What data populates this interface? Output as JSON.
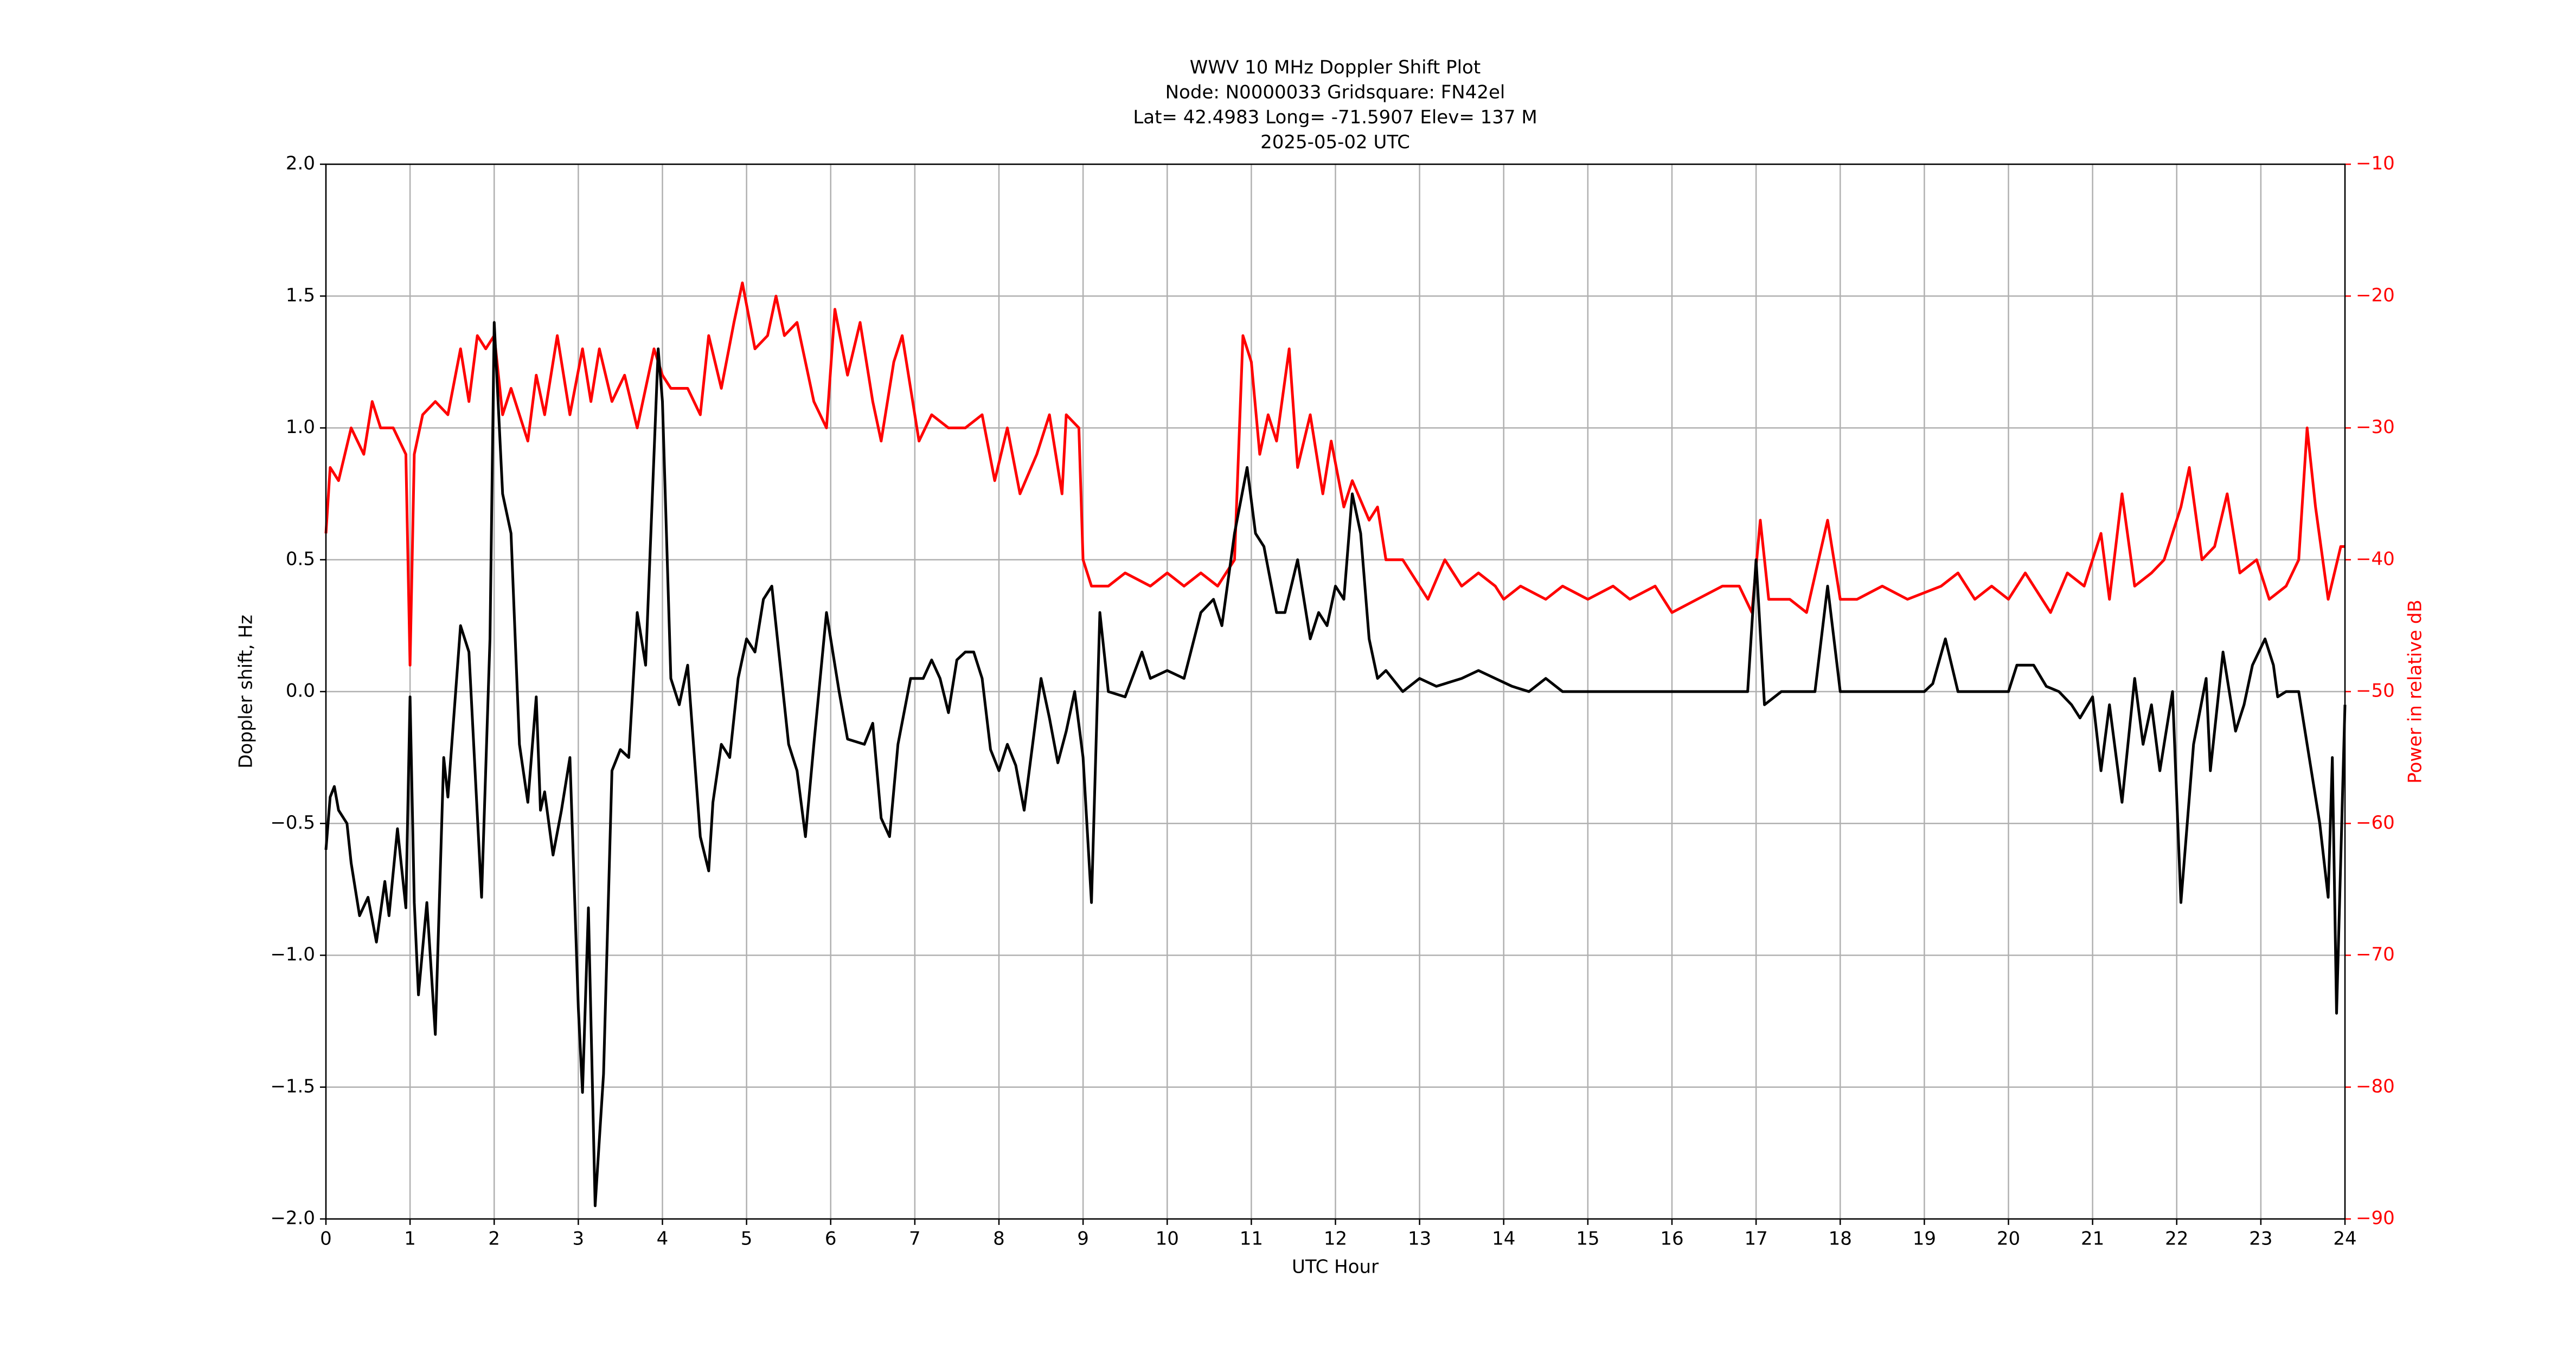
{
  "chart_data": {
    "type": "line",
    "title": [
      "WWV 10 MHz Doppler Shift Plot",
      "Node:  N0000033     Gridsquare:  FN42el",
      "Lat= 42.4983    Long= -71.5907    Elev= 137 M",
      "2025-05-02  UTC"
    ],
    "xlabel": "UTC Hour",
    "ylabel": "Doppler shift, Hz",
    "y2label": "Power in relative dB",
    "xlim": [
      0,
      24
    ],
    "xticks": [
      0,
      1,
      2,
      3,
      4,
      5,
      6,
      7,
      8,
      9,
      10,
      11,
      12,
      13,
      14,
      15,
      16,
      17,
      18,
      19,
      20,
      21,
      22,
      23,
      24
    ],
    "ylim": [
      -2.0,
      2.0
    ],
    "yticks": [
      {
        "value": -2.0,
        "label": "−2.0"
      },
      {
        "value": -1.5,
        "label": "−1.5"
      },
      {
        "value": -1.0,
        "label": "−1.0"
      },
      {
        "value": -0.5,
        "label": "−0.5"
      },
      {
        "value": 0.0,
        "label": "0.0"
      },
      {
        "value": 0.5,
        "label": "0.5"
      },
      {
        "value": 1.0,
        "label": "1.0"
      },
      {
        "value": 1.5,
        "label": "1.5"
      },
      {
        "value": 2.0,
        "label": "2.0"
      }
    ],
    "y2lim": [
      -90,
      -10
    ],
    "y2ticks": [
      {
        "value": -90,
        "label": "−90"
      },
      {
        "value": -80,
        "label": "−80"
      },
      {
        "value": -70,
        "label": "−70"
      },
      {
        "value": -60,
        "label": "−60"
      },
      {
        "value": -50,
        "label": "−50"
      },
      {
        "value": -40,
        "label": "−40"
      },
      {
        "value": -30,
        "label": "−30"
      },
      {
        "value": -20,
        "label": "−20"
      },
      {
        "value": -10,
        "label": "−10"
      }
    ],
    "grid": true,
    "y2color": "#ff0000",
    "series": [
      {
        "color": "#000000",
        "axis": "y",
        "x": [
          0,
          0.05,
          0.1,
          0.15,
          0.25,
          0.3,
          0.4,
          0.5,
          0.6,
          0.7,
          0.75,
          0.85,
          0.95,
          1.0,
          1.05,
          1.1,
          1.2,
          1.3,
          1.4,
          1.45,
          1.6,
          1.7,
          1.85,
          1.95,
          2.0,
          2.1,
          2.2,
          2.3,
          2.4,
          2.5,
          2.55,
          2.6,
          2.7,
          2.8,
          2.9,
          3.0,
          3.05,
          3.12,
          3.2,
          3.3,
          3.4,
          3.5,
          3.6,
          3.7,
          3.8,
          3.95,
          4.0,
          4.1,
          4.2,
          4.3,
          4.45,
          4.55,
          4.6,
          4.7,
          4.8,
          4.9,
          5.0,
          5.1,
          5.2,
          5.3,
          5.4,
          5.5,
          5.6,
          5.7,
          5.8,
          5.95,
          6.1,
          6.2,
          6.4,
          6.5,
          6.6,
          6.7,
          6.8,
          6.95,
          7.1,
          7.2,
          7.3,
          7.4,
          7.5,
          7.6,
          7.7,
          7.8,
          7.9,
          8.0,
          8.1,
          8.2,
          8.3,
          8.4,
          8.5,
          8.6,
          8.7,
          8.8,
          8.9,
          9.0,
          9.1,
          9.2,
          9.3,
          9.5,
          9.7,
          9.8,
          10.0,
          10.2,
          10.4,
          10.55,
          10.65,
          10.8,
          10.95,
          11.05,
          11.15,
          11.3,
          11.4,
          11.55,
          11.7,
          11.8,
          11.9,
          12.0,
          12.1,
          12.2,
          12.3,
          12.4,
          12.5,
          12.6,
          12.8,
          13.0,
          13.2,
          13.5,
          13.7,
          13.9,
          14.1,
          14.3,
          14.5,
          14.7,
          15,
          16,
          16.9,
          17.0,
          17.1,
          17.3,
          17.7,
          17.85,
          18.0,
          19.0,
          19.1,
          19.25,
          19.4,
          19.6,
          20.0,
          20.1,
          20.3,
          20.45,
          20.6,
          20.75,
          20.85,
          21.0,
          21.1,
          21.2,
          21.35,
          21.5,
          21.6,
          21.7,
          21.8,
          21.95,
          22.05,
          22.2,
          22.35,
          22.4,
          22.55,
          22.7,
          22.8,
          22.9,
          23.05,
          23.15,
          23.2,
          23.3,
          23.45,
          23.55,
          23.7,
          23.8,
          23.85,
          23.9,
          24.0
        ],
        "values": [
          -0.6,
          -0.4,
          -0.36,
          -0.45,
          -0.5,
          -0.65,
          -0.85,
          -0.78,
          -0.95,
          -0.72,
          -0.85,
          -0.52,
          -0.82,
          -0.02,
          -0.8,
          -1.15,
          -0.8,
          -1.3,
          -0.25,
          -0.4,
          0.25,
          0.15,
          -0.78,
          0.2,
          1.4,
          0.75,
          0.6,
          -0.2,
          -0.42,
          -0.02,
          -0.45,
          -0.38,
          -0.62,
          -0.45,
          -0.25,
          -1.2,
          -1.52,
          -0.82,
          -1.95,
          -1.45,
          -0.3,
          -0.22,
          -0.25,
          0.3,
          0.1,
          1.3,
          1.1,
          0.05,
          -0.05,
          0.1,
          -0.55,
          -0.68,
          -0.42,
          -0.2,
          -0.25,
          0.05,
          0.2,
          0.15,
          0.35,
          0.4,
          0.1,
          -0.2,
          -0.3,
          -0.55,
          -0.2,
          0.3,
          0.0,
          -0.18,
          -0.2,
          -0.12,
          -0.48,
          -0.55,
          -0.2,
          0.05,
          0.05,
          0.12,
          0.05,
          -0.08,
          0.12,
          0.15,
          0.15,
          0.05,
          -0.22,
          -0.3,
          -0.2,
          -0.28,
          -0.45,
          -0.2,
          0.05,
          -0.1,
          -0.27,
          -0.15,
          0.0,
          -0.25,
          -0.8,
          0.3,
          0.0,
          -0.02,
          0.15,
          0.05,
          0.08,
          0.05,
          0.3,
          0.35,
          0.25,
          0.6,
          0.85,
          0.6,
          0.55,
          0.3,
          0.3,
          0.5,
          0.2,
          0.3,
          0.25,
          0.4,
          0.35,
          0.75,
          0.6,
          0.2,
          0.05,
          0.08,
          0.0,
          0.05,
          0.02,
          0.05,
          0.08,
          0.05,
          0.02,
          0.0,
          0.05,
          0.0,
          0,
          0,
          0,
          0.5,
          -0.05,
          0.0,
          0.0,
          0.4,
          0.0,
          0.0,
          0.03,
          0.2,
          0.0,
          0.0,
          0.0,
          0.1,
          0.1,
          0.02,
          0.0,
          -0.05,
          -0.1,
          -0.02,
          -0.3,
          -0.05,
          -0.42,
          0.05,
          -0.2,
          -0.05,
          -0.3,
          0.0,
          -0.8,
          -0.2,
          0.05,
          -0.3,
          0.15,
          -0.15,
          -0.05,
          0.1,
          0.2,
          0.1,
          -0.02,
          0.0,
          0.0,
          -0.2,
          -0.5,
          -0.78,
          -0.25,
          -1.22,
          -0.05
        ]
      },
      {
        "color": "#ff0000",
        "axis": "y2",
        "x": [
          0,
          0.05,
          0.15,
          0.3,
          0.45,
          0.55,
          0.65,
          0.8,
          0.95,
          1.0,
          1.05,
          1.15,
          1.3,
          1.45,
          1.6,
          1.7,
          1.8,
          1.9,
          2.0,
          2.1,
          2.2,
          2.4,
          2.5,
          2.6,
          2.75,
          2.9,
          3.05,
          3.15,
          3.25,
          3.4,
          3.55,
          3.7,
          3.9,
          4.0,
          4.1,
          4.3,
          4.45,
          4.55,
          4.7,
          4.85,
          4.95,
          5.1,
          5.25,
          5.35,
          5.45,
          5.6,
          5.8,
          5.95,
          6.05,
          6.2,
          6.35,
          6.5,
          6.6,
          6.75,
          6.85,
          7.05,
          7.2,
          7.4,
          7.6,
          7.8,
          7.95,
          8.1,
          8.25,
          8.45,
          8.6,
          8.75,
          8.8,
          8.95,
          9.0,
          9.1,
          9.3,
          9.5,
          9.8,
          10.0,
          10.2,
          10.4,
          10.6,
          10.8,
          10.9,
          11.0,
          11.1,
          11.2,
          11.3,
          11.45,
          11.55,
          11.7,
          11.85,
          11.95,
          12.1,
          12.2,
          12.4,
          12.5,
          12.6,
          12.8,
          12.9,
          13.1,
          13.3,
          13.5,
          13.7,
          13.9,
          14.0,
          14.2,
          14.5,
          14.7,
          15,
          15.3,
          15.5,
          15.8,
          16,
          16.3,
          16.6,
          16.8,
          16.95,
          17.05,
          17.15,
          17.4,
          17.6,
          17.85,
          18.0,
          18.2,
          18.5,
          18.8,
          19.2,
          19.4,
          19.6,
          19.8,
          20.0,
          20.2,
          20.5,
          20.7,
          20.9,
          21.1,
          21.2,
          21.35,
          21.5,
          21.7,
          21.85,
          22.05,
          22.15,
          22.3,
          22.45,
          22.6,
          22.75,
          22.95,
          23.1,
          23.3,
          23.45,
          23.55,
          23.65,
          23.8,
          23.95,
          24.0
        ],
        "values": [
          -38,
          -33,
          -34,
          -30,
          -32,
          -28,
          -30,
          -30,
          -32,
          -48,
          -32,
          -29,
          -28,
          -29,
          -24,
          -28,
          -23,
          -24,
          -23,
          -29,
          -27,
          -31,
          -26,
          -29,
          -23,
          -29,
          -24,
          -28,
          -24,
          -28,
          -26,
          -30,
          -24,
          -26,
          -27,
          -27,
          -29,
          -23,
          -27,
          -22,
          -19,
          -24,
          -23,
          -20,
          -23,
          -22,
          -28,
          -30,
          -21,
          -26,
          -22,
          -28,
          -31,
          -25,
          -23,
          -31,
          -29,
          -30,
          -30,
          -29,
          -34,
          -30,
          -35,
          -32,
          -29,
          -35,
          -29,
          -30,
          -40,
          -42,
          -42,
          -41,
          -42,
          -41,
          -42,
          -41,
          -42,
          -40,
          -23,
          -25,
          -32,
          -29,
          -31,
          -24,
          -33,
          -29,
          -35,
          -31,
          -36,
          -34,
          -37,
          -36,
          -40,
          -40,
          -41,
          -43,
          -40,
          -42,
          -41,
          -42,
          -43,
          -42,
          -43,
          -42,
          -43,
          -42,
          -43,
          -42,
          -44,
          -43,
          -42,
          -42,
          -44,
          -37,
          -43,
          -43,
          -44,
          -37,
          -43,
          -43,
          -42,
          -43,
          -42,
          -41,
          -43,
          -42,
          -43,
          -41,
          -44,
          -41,
          -42,
          -38,
          -43,
          -35,
          -42,
          -41,
          -40,
          -36,
          -33,
          -40,
          -39,
          -35,
          -41,
          -40,
          -43,
          -42,
          -40,
          -30,
          -36,
          -43,
          -39,
          -39
        ]
      }
    ]
  }
}
